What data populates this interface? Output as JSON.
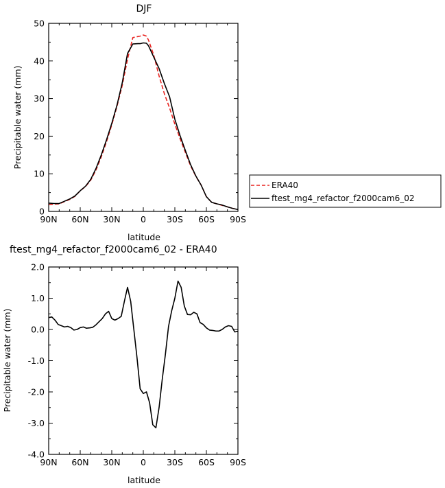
{
  "chart_data": [
    {
      "type": "line",
      "title": "DJF",
      "xlabel": "latitude",
      "ylabel": "Precipitable water (mm)",
      "xlim": [
        -90,
        90
      ],
      "ylim": [
        0,
        50
      ],
      "x_ticks": [
        {
          "value": -90,
          "label": "90N"
        },
        {
          "value": -60,
          "label": "60N"
        },
        {
          "value": -30,
          "label": "30N"
        },
        {
          "value": 0,
          "label": "0"
        },
        {
          "value": 30,
          "label": "30S"
        },
        {
          "value": 60,
          "label": "60S"
        },
        {
          "value": 90,
          "label": "90S"
        }
      ],
      "y_ticks": [
        {
          "value": 0,
          "label": "0"
        },
        {
          "value": 10,
          "label": "10"
        },
        {
          "value": 20,
          "label": "20"
        },
        {
          "value": 30,
          "label": "30"
        },
        {
          "value": 40,
          "label": "40"
        },
        {
          "value": 50,
          "label": "50"
        }
      ],
      "grid": false,
      "legend_position": "right",
      "x": [
        -90,
        -85,
        -80,
        -75,
        -70,
        -65,
        -60,
        -55,
        -50,
        -45,
        -40,
        -35,
        -30,
        -25,
        -20,
        -15,
        -10,
        -5,
        -3,
        0,
        3,
        5,
        10,
        15,
        20,
        25,
        30,
        35,
        40,
        45,
        50,
        55,
        60,
        65,
        70,
        75,
        80,
        85,
        90
      ],
      "series": [
        {
          "name": "ERA40",
          "color": "#e8231f",
          "dash": "dashed",
          "values": [
            1.8,
            1.9,
            2.0,
            2.6,
            3.2,
            4.0,
            5.5,
            6.6,
            8.3,
            11.0,
            14.5,
            18.5,
            23.0,
            28.0,
            33.5,
            40.5,
            46.2,
            46.5,
            46.6,
            46.9,
            46.6,
            45.5,
            41.5,
            36.0,
            31.3,
            27.5,
            23.2,
            19.3,
            15.7,
            12.1,
            9.3,
            7.0,
            3.9,
            2.4,
            2.0,
            1.6,
            1.2,
            0.8,
            0.5
          ]
        },
        {
          "name": "ftest_mg4_refactor_f2000cam6_02",
          "color": "#000000",
          "dash": "solid",
          "values": [
            2.2,
            2.1,
            2.1,
            2.7,
            3.3,
            4.1,
            5.5,
            6.7,
            8.5,
            11.4,
            15.0,
            19.0,
            23.4,
            28.3,
            34.2,
            42.0,
            44.5,
            44.6,
            44.6,
            44.8,
            44.7,
            44.0,
            41.0,
            38.0,
            34.0,
            30.5,
            24.5,
            20.1,
            16.2,
            12.4,
            9.4,
            7.0,
            3.9,
            2.4,
            2.0,
            1.7,
            1.2,
            0.8,
            0.5
          ]
        }
      ]
    },
    {
      "type": "line",
      "title": "ftest_mg4_refactor_f2000cam6_02 - ERA40",
      "xlabel": "latitude",
      "ylabel": "Precipitable water (mm)",
      "xlim": [
        -90,
        90
      ],
      "ylim": [
        -4,
        2
      ],
      "x_ticks": [
        {
          "value": -90,
          "label": "90N"
        },
        {
          "value": -60,
          "label": "60N"
        },
        {
          "value": -30,
          "label": "30N"
        },
        {
          "value": 0,
          "label": "0"
        },
        {
          "value": 30,
          "label": "30S"
        },
        {
          "value": 60,
          "label": "60S"
        },
        {
          "value": 90,
          "label": "90S"
        }
      ],
      "y_ticks": [
        {
          "value": -4,
          "label": "-4.0"
        },
        {
          "value": -3,
          "label": "-3.0"
        },
        {
          "value": -2,
          "label": "-2.0"
        },
        {
          "value": -1,
          "label": "-1.0"
        },
        {
          "value": 0,
          "label": "0.0"
        },
        {
          "value": 1,
          "label": "1.0"
        },
        {
          "value": 2,
          "label": "2.0"
        }
      ],
      "grid": false,
      "x": [
        -90,
        -87,
        -84,
        -81,
        -78,
        -75,
        -72,
        -69,
        -66,
        -63,
        -60,
        -57,
        -54,
        -51,
        -48,
        -45,
        -42,
        -39,
        -36,
        -33,
        -30,
        -27,
        -24,
        -21,
        -18,
        -15,
        -12,
        -9,
        -6,
        -3,
        0,
        3,
        6,
        9,
        12,
        15,
        18,
        21,
        24,
        27,
        30,
        33,
        36,
        39,
        42,
        45,
        48,
        51,
        54,
        57,
        60,
        63,
        66,
        69,
        72,
        75,
        78,
        81,
        84,
        87,
        90
      ],
      "series": [
        {
          "name": "",
          "color": "#000000",
          "dash": "solid",
          "values": [
            0.38,
            0.4,
            0.3,
            0.16,
            0.12,
            0.08,
            0.1,
            0.06,
            -0.02,
            0.0,
            0.06,
            0.08,
            0.04,
            0.05,
            0.07,
            0.15,
            0.25,
            0.35,
            0.5,
            0.58,
            0.35,
            0.3,
            0.35,
            0.42,
            0.9,
            1.35,
            0.9,
            0.0,
            -0.9,
            -1.9,
            -2.05,
            -2.0,
            -2.35,
            -3.05,
            -3.15,
            -2.5,
            -1.6,
            -0.8,
            0.1,
            0.6,
            1.0,
            1.55,
            1.35,
            0.75,
            0.48,
            0.47,
            0.55,
            0.5,
            0.22,
            0.16,
            0.05,
            -0.02,
            -0.03,
            -0.05,
            -0.05,
            0.0,
            0.08,
            0.12,
            0.1,
            -0.08,
            -0.06
          ]
        }
      ]
    }
  ]
}
